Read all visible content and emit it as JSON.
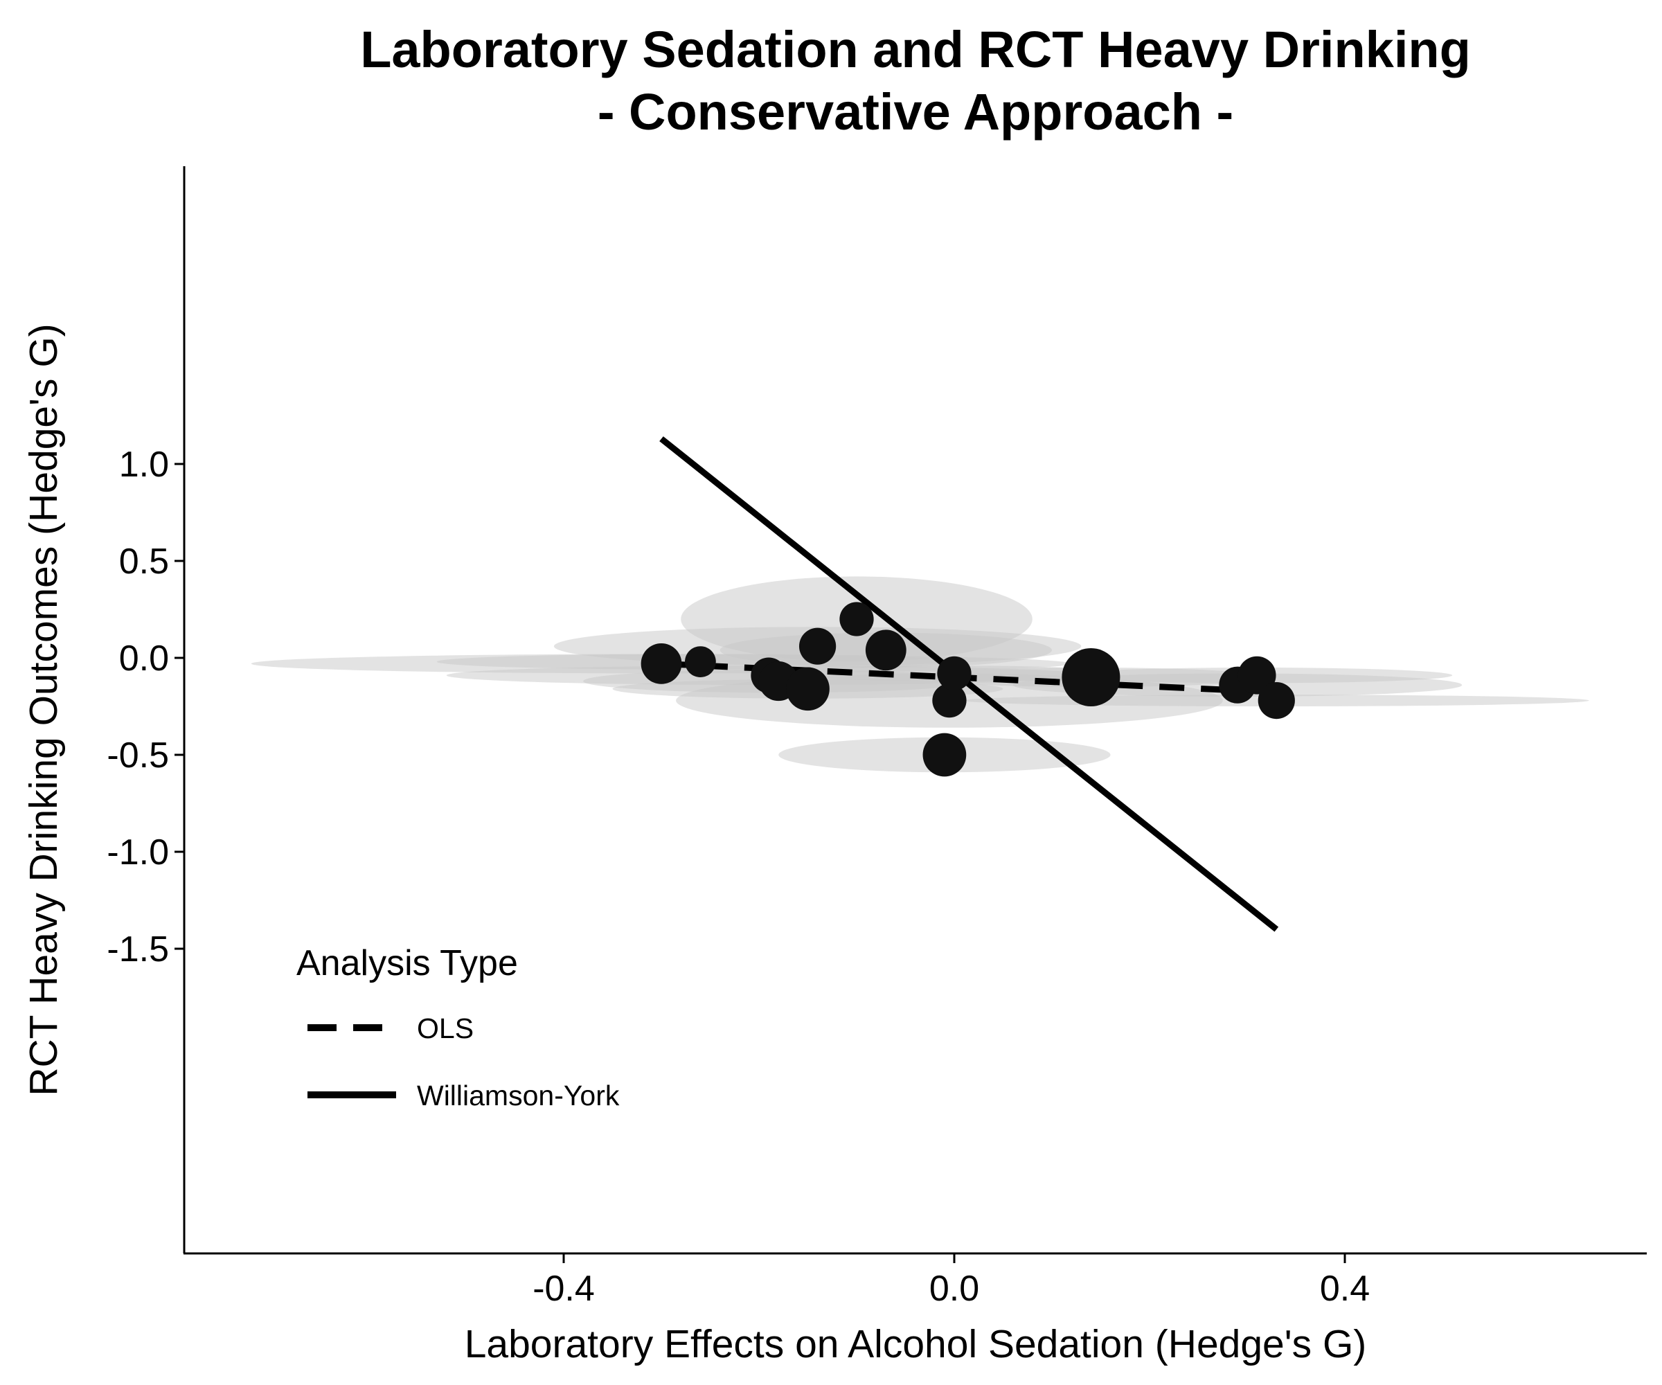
{
  "chart_data": {
    "type": "scatter",
    "title_line1": "Laboratory Sedation and RCT Heavy Drinking",
    "title_line2": "- Conservative Approach -",
    "xlabel": "Laboratory Effects on Alcohol Sedation (Hedge's G)",
    "ylabel": "RCT Heavy Drinking Outcomes (Hedge's G)",
    "xlim": [
      -0.79,
      0.71
    ],
    "ylim": [
      -1.53,
      1.25
    ],
    "x_ticks": [
      -0.4,
      0.0,
      0.4
    ],
    "x_tick_labels": [
      "-0.4",
      "0.0",
      "0.4"
    ],
    "y_ticks": [
      -1.5,
      -1.0,
      -0.5,
      0.0,
      0.5,
      1.0
    ],
    "y_tick_labels": [
      "-1.5",
      "-1.0",
      "-0.5",
      "0.0",
      "0.5",
      "1.0"
    ],
    "grid": false,
    "points": [
      {
        "x": -0.3,
        "y": -0.03,
        "weight": 0.55,
        "x_error": 0.42,
        "y_error": 0.05
      },
      {
        "x": -0.26,
        "y": -0.02,
        "weight": 0.3,
        "x_error": 0.27,
        "y_error": 0.04
      },
      {
        "x": -0.19,
        "y": -0.09,
        "weight": 0.42,
        "x_error": 0.33,
        "y_error": 0.05
      },
      {
        "x": -0.18,
        "y": -0.12,
        "weight": 0.52,
        "x_error": 0.2,
        "y_error": 0.06
      },
      {
        "x": -0.15,
        "y": -0.16,
        "weight": 0.62,
        "x_error": 0.2,
        "y_error": 0.05
      },
      {
        "x": -0.14,
        "y": 0.06,
        "weight": 0.45,
        "x_error": 0.27,
        "y_error": 0.1
      },
      {
        "x": -0.1,
        "y": 0.2,
        "weight": 0.38,
        "x_error": 0.18,
        "y_error": 0.22
      },
      {
        "x": -0.07,
        "y": 0.04,
        "weight": 0.55,
        "x_error": 0.17,
        "y_error": 0.09
      },
      {
        "x": -0.01,
        "y": -0.5,
        "weight": 0.62,
        "x_error": 0.17,
        "y_error": 0.09
      },
      {
        "x": -0.005,
        "y": -0.22,
        "weight": 0.38,
        "x_error": 0.28,
        "y_error": 0.14
      },
      {
        "x": 0.0,
        "y": -0.08,
        "weight": 0.38,
        "x_error": 0.17,
        "y_error": 0.04
      },
      {
        "x": 0.14,
        "y": -0.1,
        "weight": 1.0,
        "x_error": 0.18,
        "y_error": 0.05
      },
      {
        "x": 0.29,
        "y": -0.14,
        "weight": 0.45,
        "x_error": 0.23,
        "y_error": 0.06
      },
      {
        "x": 0.31,
        "y": -0.09,
        "weight": 0.48,
        "x_error": 0.2,
        "y_error": 0.04
      },
      {
        "x": 0.33,
        "y": -0.22,
        "weight": 0.45,
        "x_error": 0.32,
        "y_error": 0.03
      }
    ],
    "series": [
      {
        "name": "OLS",
        "style": "dashed",
        "x": [
          -0.3,
          0.3
        ],
        "y": [
          -0.03,
          -0.17
        ]
      },
      {
        "name": "Williamson-York",
        "style": "solid",
        "x": [
          -0.3,
          0.33
        ],
        "y": [
          1.13,
          -1.4
        ]
      }
    ],
    "legend": {
      "title": "Analysis Type",
      "placement": "bottom-left",
      "items": [
        "OLS",
        "Williamson-York"
      ]
    },
    "colors": {
      "point": "#111111",
      "error_ellipse": "#c8c8c8",
      "line": "#000000"
    }
  }
}
